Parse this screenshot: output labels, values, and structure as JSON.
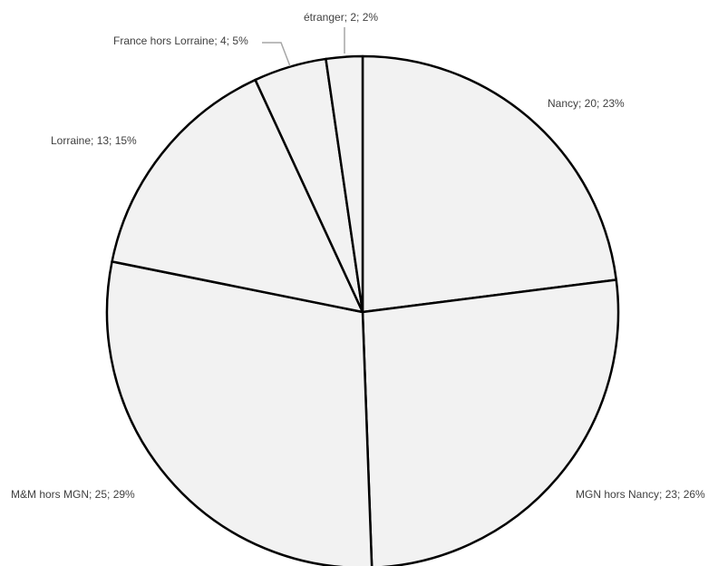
{
  "chart_data": {
    "type": "pie",
    "title": "",
    "start_angle_deg": 0,
    "direction": "clockwise",
    "categories": [
      "Nancy",
      "MGN hors Nancy",
      "M&M hors MGN",
      "Lorraine",
      "France hors Lorraine",
      "étranger"
    ],
    "values": [
      20,
      23,
      25,
      13,
      4,
      2
    ],
    "percent_labels": [
      "23%",
      "26%",
      "29%",
      "15%",
      "5%",
      "2%"
    ],
    "data_labels": [
      "Nancy; 20; 23%",
      "MGN hors Nancy; 23; 26%",
      "M&M hors MGN; 25; 29%",
      "Lorraine; 13; 15%",
      "France hors Lorraine; 4; 5%",
      "étranger; 2; 2%"
    ],
    "slice_fill": "#f2f2f2",
    "slice_stroke": "#000000",
    "leader_color": "#a6a6a6",
    "label_color": "#404040",
    "legend": "none"
  }
}
